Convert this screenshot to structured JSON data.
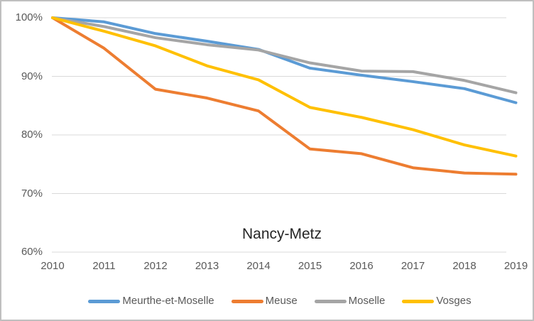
{
  "chart_data": {
    "type": "line",
    "title": "Nancy-Metz",
    "categories": [
      "2010",
      "2011",
      "2012",
      "2013",
      "2014",
      "2015",
      "2016",
      "2017",
      "2018",
      "2019"
    ],
    "series": [
      {
        "name": "Meurthe-et-Moselle",
        "color": "#5B9BD5",
        "values": [
          100,
          99.3,
          97.3,
          96.0,
          94.6,
          91.4,
          90.2,
          89.1,
          87.9,
          85.5
        ]
      },
      {
        "name": "Meuse",
        "color": "#ED7D31",
        "values": [
          100,
          94.8,
          87.8,
          86.3,
          84.1,
          77.6,
          76.8,
          74.4,
          73.5,
          73.3
        ]
      },
      {
        "name": "Moselle",
        "color": "#A5A5A5",
        "values": [
          100,
          98.5,
          96.6,
          95.4,
          94.5,
          92.3,
          90.9,
          90.8,
          89.3,
          87.2
        ]
      },
      {
        "name": "Vosges",
        "color": "#FFC000",
        "values": [
          100,
          97.7,
          95.2,
          91.8,
          89.4,
          84.7,
          83.0,
          80.9,
          78.3,
          76.4
        ]
      }
    ],
    "y_axis": {
      "tick_labels": [
        "100%",
        "90%",
        "80%",
        "70%",
        "60%"
      ],
      "tick_values": [
        100,
        90,
        80,
        70,
        60
      ],
      "min": 60,
      "max": 100
    },
    "grid": true,
    "legend_position": "bottom"
  },
  "colors": {
    "axis_text": "#595959",
    "gridline": "#D9D9D9",
    "title_text": "#262626",
    "frame_border": "#BFBFBF",
    "background": "#FFFFFF"
  }
}
